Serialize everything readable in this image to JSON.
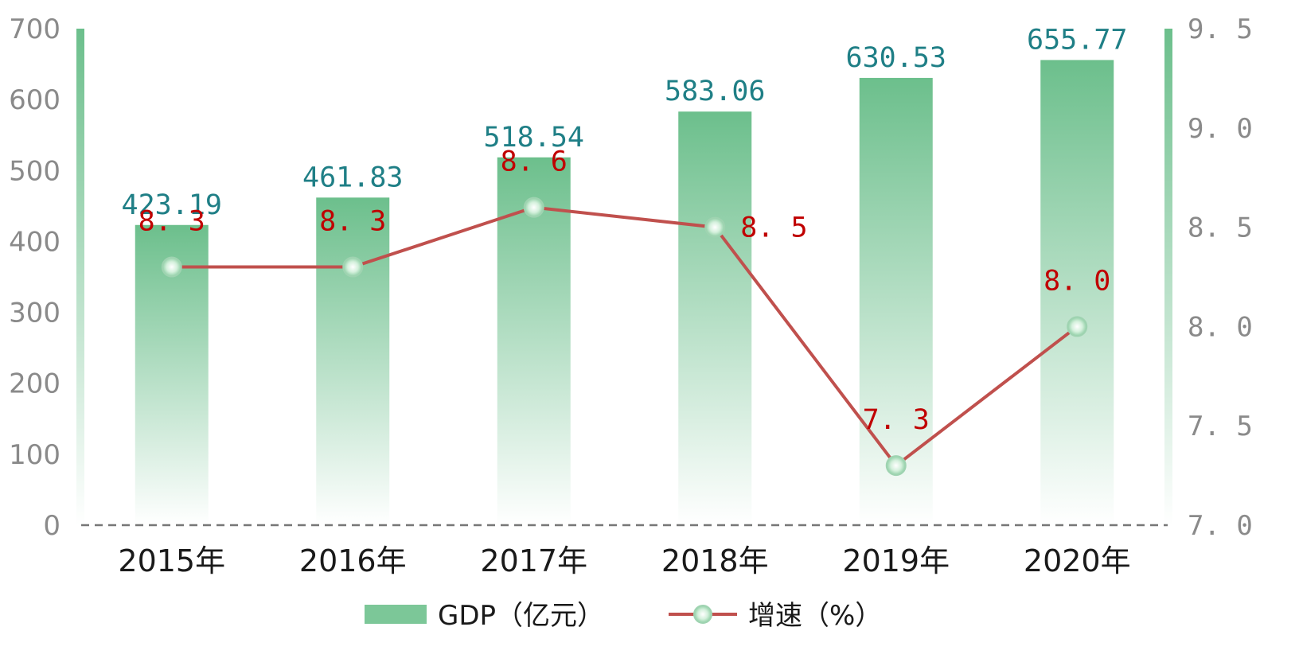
{
  "chart_data": {
    "type": "bar",
    "title": "",
    "categories": [
      "2015年",
      "2016年",
      "2017年",
      "2018年",
      "2019年",
      "2020年"
    ],
    "series": [
      {
        "name": "GDP（亿元）",
        "type": "bar",
        "axis": "left",
        "values": [
          423.19,
          461.83,
          518.54,
          583.06,
          630.53,
          655.77
        ],
        "labels": [
          "423.19",
          "461.83",
          "518.54",
          "583.06",
          "630.53",
          "655.77"
        ]
      },
      {
        "name": "增速（%）",
        "type": "line",
        "axis": "right",
        "values": [
          8.3,
          8.3,
          8.6,
          8.5,
          7.3,
          8.0
        ],
        "labels": [
          "8.3",
          "8.3",
          "8.6",
          "8.5",
          "7.3",
          "8.0"
        ]
      }
    ],
    "y_left": {
      "ylim": [
        0,
        700
      ],
      "ticks": [
        "0",
        "100",
        "200",
        "300",
        "400",
        "500",
        "600",
        "700"
      ]
    },
    "y_right": {
      "ylim": [
        7.0,
        9.5
      ],
      "ticks": [
        "7.0",
        "7.5",
        "8.0",
        "8.5",
        "9.0",
        "9.5"
      ]
    },
    "grid": false,
    "legend": "bottom-center",
    "colors": {
      "bar_top": "#6cbf8c",
      "bar_bottom": "#ffffff",
      "line": "#c0504d",
      "bar_label": "#1f7f86",
      "line_label": "#c00000",
      "marker": "#a8dcb8"
    }
  }
}
